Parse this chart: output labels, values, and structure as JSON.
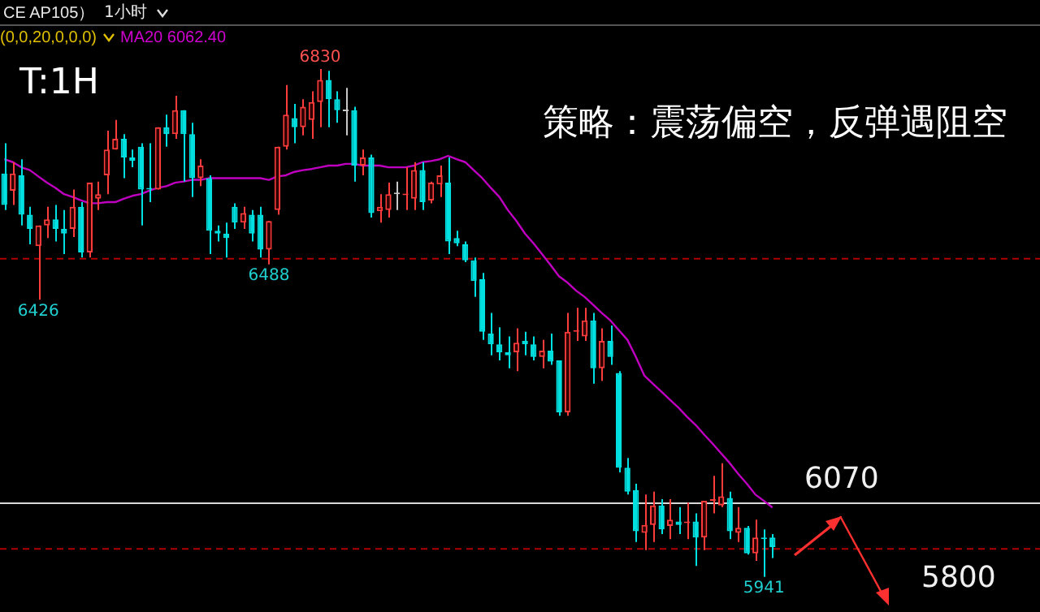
{
  "chart_data": {
    "type": "candlestick",
    "title": "策略：震荡偏空，反弹遇阻空",
    "subtitle": "T:1H",
    "categories": [
      null,
      null,
      null,
      null,
      null,
      null,
      null,
      null,
      null,
      null,
      null,
      null,
      null,
      null,
      null,
      null,
      null,
      null,
      null,
      null,
      null,
      null,
      null,
      null,
      null,
      null,
      null,
      null,
      null,
      null,
      null,
      null,
      null,
      null,
      null,
      null,
      null,
      null,
      null,
      null,
      null,
      null,
      null,
      null,
      null,
      null,
      null,
      null,
      null,
      null,
      null,
      null,
      null,
      null,
      null,
      null,
      null,
      null,
      null,
      null,
      null,
      null,
      null,
      null,
      null,
      null,
      null,
      null,
      null,
      null,
      null,
      null,
      null,
      null,
      null,
      null,
      null,
      null,
      null,
      null,
      null,
      null,
      null,
      null,
      null,
      null,
      null,
      null,
      null,
      null,
      null
    ],
    "ohlc": [
      [
        6647,
        6700,
        6583,
        6592
      ],
      [
        6617,
        6667,
        6592,
        6647
      ],
      [
        6644,
        6672,
        6556,
        6575
      ],
      [
        6575,
        6589,
        6523,
        6550
      ],
      [
        6520,
        6556,
        6426,
        6556
      ],
      [
        6556,
        6589,
        6534,
        6567
      ],
      [
        6567,
        6592,
        6528,
        6550
      ],
      [
        6550,
        6583,
        6506,
        6542
      ],
      [
        6550,
        6619,
        6536,
        6589
      ],
      [
        6589,
        6597,
        6500,
        6509
      ],
      [
        6509,
        6631,
        6500,
        6631
      ],
      [
        6603,
        6633,
        6583,
        6611
      ],
      [
        6644,
        6722,
        6611,
        6689
      ],
      [
        6689,
        6741,
        6689,
        6708
      ],
      [
        6708,
        6716,
        6639,
        6675
      ],
      [
        6675,
        6689,
        6658,
        6669
      ],
      [
        6694,
        6700,
        6556,
        6619
      ],
      [
        6622,
        6700,
        6597,
        6619
      ],
      [
        6619,
        6728,
        6619,
        6728
      ],
      [
        6728,
        6750,
        6694,
        6716
      ],
      [
        6716,
        6783,
        6708,
        6758
      ],
      [
        6758,
        6758,
        6633,
        6716
      ],
      [
        6716,
        6736,
        6606,
        6639
      ],
      [
        6639,
        6672,
        6625,
        6661
      ],
      [
        6639,
        6644,
        6506,
        6547
      ],
      [
        6547,
        6556,
        6528,
        6542
      ],
      [
        6542,
        6561,
        6500,
        6534
      ],
      [
        6589,
        6595,
        6550,
        6561
      ],
      [
        6561,
        6589,
        6550,
        6578
      ],
      [
        6575,
        6583,
        6528,
        6542
      ],
      [
        6575,
        6589,
        6500,
        6514
      ],
      [
        6514,
        6564,
        6488,
        6564
      ],
      [
        6583,
        6694,
        6575,
        6694
      ],
      [
        6694,
        6802,
        6689,
        6750
      ],
      [
        6744,
        6769,
        6700,
        6728
      ],
      [
        6728,
        6777,
        6714,
        6764
      ],
      [
        6741,
        6791,
        6708,
        6772
      ],
      [
        6772,
        6830,
        6728,
        6811
      ],
      [
        6811,
        6827,
        6728,
        6777
      ],
      [
        6777,
        6791,
        6736,
        6758
      ],
      [
        6756,
        6797,
        6714,
        6756
      ],
      [
        6758,
        6764,
        6633,
        6661
      ],
      [
        6661,
        6689,
        6644,
        6675
      ],
      [
        6675,
        6680,
        6570,
        6578
      ],
      [
        6581,
        6611,
        6561,
        6589
      ],
      [
        6583,
        6631,
        6570,
        6611
      ],
      [
        6611,
        6633,
        6583,
        6611
      ],
      [
        6609,
        6658,
        6583,
        6611
      ],
      [
        6603,
        6667,
        6583,
        6653
      ],
      [
        6653,
        6667,
        6583,
        6597
      ],
      [
        6600,
        6633,
        6595,
        6631
      ],
      [
        6628,
        6661,
        6606,
        6644
      ],
      [
        6631,
        6675,
        6506,
        6528
      ],
      [
        6534,
        6547,
        6520,
        6525
      ],
      [
        6523,
        6528,
        6492,
        6495
      ],
      [
        6495,
        6500,
        6431,
        6459
      ],
      [
        6462,
        6473,
        6356,
        6370
      ],
      [
        6367,
        6403,
        6329,
        6348
      ],
      [
        6348,
        6378,
        6320,
        6334
      ],
      [
        6334,
        6362,
        6306,
        6329
      ],
      [
        6334,
        6376,
        6301,
        6351
      ],
      [
        6354,
        6370,
        6329,
        6348
      ],
      [
        6348,
        6362,
        6320,
        6326
      ],
      [
        6326,
        6356,
        6306,
        6337
      ],
      [
        6337,
        6367,
        6312,
        6318
      ],
      [
        6320,
        6320,
        6223,
        6229
      ],
      [
        6229,
        6403,
        6223,
        6370
      ],
      [
        6370,
        6412,
        6354,
        6373
      ],
      [
        6362,
        6412,
        6354,
        6390
      ],
      [
        6390,
        6403,
        6279,
        6306
      ],
      [
        6306,
        6376,
        6284,
        6354
      ],
      [
        6354,
        6381,
        6312,
        6326
      ],
      [
        6298,
        6301,
        6124,
        6132
      ],
      [
        6132,
        6149,
        6085,
        6090
      ],
      [
        6093,
        6104,
        6002,
        6021
      ],
      [
        6018,
        6085,
        5988,
        6032
      ],
      [
        6032,
        6090,
        6002,
        6066
      ],
      [
        6066,
        6077,
        6016,
        6024
      ],
      [
        6030,
        6077,
        6007,
        6041
      ],
      [
        6038,
        6063,
        6016,
        6032
      ],
      [
        6035,
        6071,
        6007,
        6038
      ],
      [
        6038,
        6052,
        5960,
        6010
      ],
      [
        6010,
        6074,
        5988,
        6074
      ],
      [
        6074,
        6118,
        6052,
        6077
      ],
      [
        6066,
        6140,
        6063,
        6082
      ],
      [
        6079,
        6090,
        6007,
        6021
      ],
      [
        6018,
        6063,
        6002,
        6027
      ],
      [
        6027,
        6030,
        5980,
        5982
      ],
      [
        5982,
        6041,
        5969,
        6010
      ],
      [
        6010,
        6024,
        5941,
        6007
      ],
      [
        6010,
        6016,
        5974,
        5993
      ]
    ],
    "colors": [
      "#00e0e0",
      "#ff3c3c",
      "#00e0e0",
      "#00e0e0",
      "#ff3c3c",
      "#ff3c3c",
      "#00e0e0",
      "#00e0e0",
      "#ff3c3c",
      "#00e0e0",
      "#ff3c3c",
      "#ff3c3c",
      "#ff3c3c",
      "#ff3c3c",
      "#00e0e0",
      "#00e0e0",
      "#00e0e0",
      "#00e0e0",
      "#ff3c3c",
      "#00e0e0",
      "#ff3c3c",
      "#00e0e0",
      "#00e0e0",
      "#ff3c3c",
      "#00e0e0",
      "#00e0e0",
      "#00e0e0",
      "#00e0e0",
      "#ff3c3c",
      "#00e0e0",
      "#00e0e0",
      "#ff3c3c",
      "#ff3c3c",
      "#ff3c3c",
      "#00e0e0",
      "#ff3c3c",
      "#ff3c3c",
      "#ff3c3c",
      "#00e0e0",
      "#00e0e0",
      "#c8c8c8",
      "#00e0e0",
      "#ff3c3c",
      "#00e0e0",
      "#ff3c3c",
      "#ff3c3c",
      "#c8c8c8",
      "#ff3c3c",
      "#ff3c3c",
      "#00e0e0",
      "#ff3c3c",
      "#ff3c3c",
      "#00e0e0",
      "#00e0e0",
      "#00e0e0",
      "#00e0e0",
      "#00e0e0",
      "#00e0e0",
      "#00e0e0",
      "#00e0e0",
      "#ff3c3c",
      "#00e0e0",
      "#00e0e0",
      "#ff3c3c",
      "#00e0e0",
      "#00e0e0",
      "#ff3c3c",
      "#ff3c3c",
      "#ff3c3c",
      "#00e0e0",
      "#ff3c3c",
      "#00e0e0",
      "#00e0e0",
      "#00e0e0",
      "#00e0e0",
      "#ff3c3c",
      "#ff3c3c",
      "#00e0e0",
      "#ff3c3c",
      "#00e0e0",
      "#ff3c3c",
      "#00e0e0",
      "#ff3c3c",
      "#ff3c3c",
      "#ff3c3c",
      "#00e0e0",
      "#ff3c3c",
      "#00e0e0",
      "#ff3c3c",
      "#00e0e0",
      "#00e0e0"
    ],
    "series": [
      {
        "type": "line",
        "color": "#c000c0",
        "values": [
          6672,
          6667,
          6658,
          6653,
          6642,
          6631,
          6622,
          6611,
          6606,
          6600,
          6595,
          6595,
          6597,
          6597,
          6603,
          6608,
          6611,
          6617,
          6622,
          6625,
          6631,
          6633,
          6636,
          6636,
          6639,
          6639,
          6639,
          6639,
          6639,
          6639,
          6639,
          6636,
          6642,
          6644,
          6650,
          6653,
          6655,
          6658,
          6661,
          6661,
          6664,
          6664,
          6661,
          6661,
          6661,
          6658,
          6658,
          6658,
          6661,
          6667,
          6669,
          6672,
          6678,
          6672,
          6667,
          6653,
          6639,
          6622,
          6606,
          6583,
          6564,
          6542,
          6525,
          6506,
          6487,
          6467,
          6456,
          6442,
          6431,
          6417,
          6403,
          6390,
          6373,
          6356,
          6326,
          6293,
          6279,
          6265,
          6251,
          6237,
          6221,
          6207,
          6190,
          6174,
          6157,
          6140,
          6121,
          6104,
          6085,
          6074,
          6062.4
        ]
      }
    ],
    "ref_lines": [
      {
        "axis": "y",
        "value": 6070,
        "label": "6070",
        "color": "#d8d8d8",
        "line_style": "solid"
      },
      {
        "axis": "y",
        "value": 6498,
        "color": "#b00000",
        "line_style": "dashed"
      },
      {
        "axis": "y",
        "value": 5990,
        "color": "#b00000",
        "line_style": "dashed"
      }
    ],
    "annotations": [
      "CE AP105）",
      "1小时",
      "(0,0,20,0,0,0)",
      "MA20 6062.40",
      {
        "text": "6830",
        "y": 6830
      },
      {
        "text": "6426",
        "y": 6426
      },
      {
        "text": "6488",
        "y": 6488
      },
      {
        "text": "5941",
        "y": 5941
      },
      "5800"
    ],
    "tick_labels": false,
    "legend": false
  }
}
